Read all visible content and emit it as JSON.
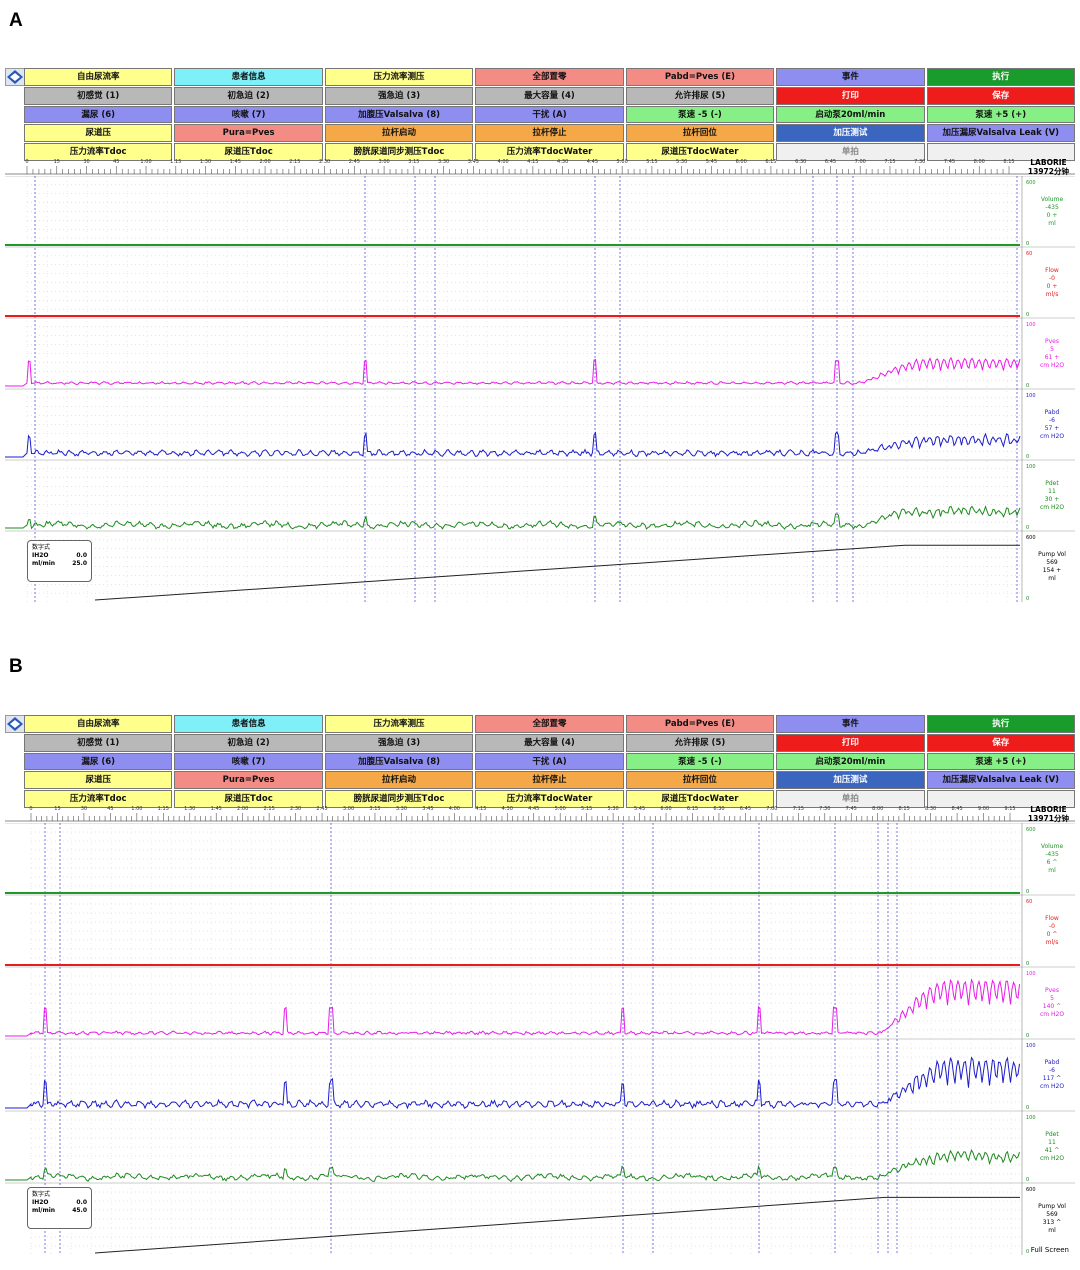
{
  "panels": [
    {
      "letter": "A",
      "buttons": [
        {
          "label": "自由尿流率",
          "color": "yellow"
        },
        {
          "label": "患者信息",
          "color": "cyan"
        },
        {
          "label": "压力流率测压",
          "color": "yellow"
        },
        {
          "label": "全部置零",
          "color": "salmon"
        },
        {
          "label": "Pabd=Pves (E)",
          "color": "salmon"
        },
        {
          "label": "事件",
          "color": "purple"
        },
        {
          "label": "执行",
          "color": "green"
        },
        {
          "label": "初感觉 (1)",
          "color": "gray"
        },
        {
          "label": "初急迫 (2)",
          "color": "gray"
        },
        {
          "label": "强急迫 (3)",
          "color": "gray"
        },
        {
          "label": "最大容量 (4)",
          "color": "gray"
        },
        {
          "label": "允许排尿 (5)",
          "color": "gray"
        },
        {
          "label": "打印",
          "color": "red"
        },
        {
          "label": "保存",
          "color": "red"
        },
        {
          "label": "漏尿 (6)",
          "color": "purple"
        },
        {
          "label": "咳嗽 (7)",
          "color": "purple"
        },
        {
          "label": "加腹压Valsalva (8)",
          "color": "purple"
        },
        {
          "label": "干扰 (A)",
          "color": "purple"
        },
        {
          "label": "泵速 -5 (-)",
          "color": "lgreen"
        },
        {
          "label": "启动泵20ml/min",
          "color": "lgreen"
        },
        {
          "label": "泵速 +5 (+)",
          "color": "lgreen"
        },
        {
          "label": "尿道压",
          "color": "yellow"
        },
        {
          "label": "Pura=Pves",
          "color": "salmon"
        },
        {
          "label": "拉杆启动",
          "color": "orange"
        },
        {
          "label": "拉杆停止",
          "color": "orange"
        },
        {
          "label": "拉杆回位",
          "color": "orange"
        },
        {
          "label": "加压测试",
          "color": "blue"
        },
        {
          "label": "加压漏尿Valsalva Leak (V)",
          "color": "purple"
        },
        {
          "label": "压力流率Tdoc",
          "color": "yellow"
        },
        {
          "label": "尿道压Tdoc",
          "color": "yellow"
        },
        {
          "label": "膀胱尿道同步测压Tdoc",
          "color": "yellow"
        },
        {
          "label": "压力流率TdocWater",
          "color": "yellow"
        },
        {
          "label": "尿道压TdocWater",
          "color": "yellow"
        },
        {
          "label": "单拍",
          "color": "white"
        }
      ],
      "time_ticks": [
        "0",
        "15",
        "30",
        "45",
        "1:00",
        "1:15",
        "1:30",
        "1:45",
        "2:00",
        "2:15",
        "2:30",
        "2:45",
        "3:00",
        "3:15",
        "3:30",
        "3:45",
        "4:00",
        "4:15",
        "4:30",
        "4:45",
        "5:00",
        "5:15",
        "5:30",
        "5:45",
        "6:00",
        "6:15",
        "6:30",
        "6:45",
        "7:00",
        "7:15",
        "7:30",
        "7:45",
        "8:00",
        "8:15"
      ],
      "laborie": {
        "brand": "LABORIE",
        "session": "13972分钟"
      },
      "channels": [
        {
          "name": "Volume",
          "values": [
            "-435",
            "0 +",
            "ml"
          ],
          "scale_top": "600",
          "scale_bottom": "0",
          "color": "#1e9a28"
        },
        {
          "name": "Flow",
          "values": [
            "-0",
            "0 +",
            "ml/s"
          ],
          "scale_top": "60",
          "scale_bottom": "0",
          "color": "#e81c1c"
        },
        {
          "name": "Pves",
          "values": [
            "5",
            "61 +",
            "cm H2O"
          ],
          "scale_top": "100",
          "scale_bottom": "0",
          "color": "#e81ce8"
        },
        {
          "name": "Pabd",
          "values": [
            "-6",
            "57 +",
            "cm H2O"
          ],
          "scale_top": "100",
          "scale_bottom": "0",
          "color": "#1c1cc8"
        },
        {
          "name": "Pdet",
          "values": [
            "11",
            "30 +",
            "cm H2O"
          ],
          "scale_top": "100",
          "scale_bottom": "0",
          "color": "#1e8a1e"
        },
        {
          "name": "Pump Vol",
          "values": [
            "569",
            "154 +",
            "ml"
          ],
          "scale_top": "600",
          "scale_bottom": "0",
          "color": "#000000"
        }
      ],
      "numeric": {
        "title": "数字式",
        "rows": [
          {
            "label": "IH2O",
            "value": "0.0"
          },
          {
            "label": "ml/min",
            "value": "25.0"
          }
        ]
      }
    },
    {
      "letter": "B",
      "buttons": [
        {
          "label": "自由尿流率",
          "color": "yellow"
        },
        {
          "label": "患者信息",
          "color": "cyan"
        },
        {
          "label": "压力流率测压",
          "color": "yellow"
        },
        {
          "label": "全部置零",
          "color": "salmon"
        },
        {
          "label": "Pabd=Pves (E)",
          "color": "salmon"
        },
        {
          "label": "事件",
          "color": "purple"
        },
        {
          "label": "执行",
          "color": "green"
        },
        {
          "label": "初感觉 (1)",
          "color": "gray"
        },
        {
          "label": "初急迫 (2)",
          "color": "gray"
        },
        {
          "label": "强急迫 (3)",
          "color": "gray"
        },
        {
          "label": "最大容量 (4)",
          "color": "gray"
        },
        {
          "label": "允许排尿 (5)",
          "color": "gray"
        },
        {
          "label": "打印",
          "color": "red"
        },
        {
          "label": "保存",
          "color": "red"
        },
        {
          "label": "漏尿 (6)",
          "color": "purple"
        },
        {
          "label": "咳嗽 (7)",
          "color": "purple"
        },
        {
          "label": "加腹压Valsalva (8)",
          "color": "purple"
        },
        {
          "label": "干扰 (A)",
          "color": "purple"
        },
        {
          "label": "泵速 -5 (-)",
          "color": "lgreen"
        },
        {
          "label": "启动泵20ml/min",
          "color": "lgreen"
        },
        {
          "label": "泵速 +5 (+)",
          "color": "lgreen"
        },
        {
          "label": "尿道压",
          "color": "yellow"
        },
        {
          "label": "Pura=Pves",
          "color": "salmon"
        },
        {
          "label": "拉杆启动",
          "color": "orange"
        },
        {
          "label": "拉杆停止",
          "color": "orange"
        },
        {
          "label": "拉杆回位",
          "color": "orange"
        },
        {
          "label": "加压测试",
          "color": "blue"
        },
        {
          "label": "加压漏尿Valsalva Leak (V)",
          "color": "purple"
        },
        {
          "label": "压力流率Tdoc",
          "color": "yellow"
        },
        {
          "label": "尿道压Tdoc",
          "color": "yellow"
        },
        {
          "label": "膀胱尿道同步测压Tdoc",
          "color": "yellow"
        },
        {
          "label": "压力流率TdocWater",
          "color": "yellow"
        },
        {
          "label": "尿道压TdocWater",
          "color": "yellow"
        },
        {
          "label": "单拍",
          "color": "white"
        }
      ],
      "time_ticks": [
        "0",
        "15",
        "30",
        "45",
        "1:00",
        "1:15",
        "1:30",
        "1:45",
        "2:00",
        "2:15",
        "2:30",
        "2:45",
        "3:00",
        "3:15",
        "3:30",
        "3:45",
        "4:00",
        "4:15",
        "4:30",
        "4:45",
        "5:00",
        "5:15",
        "5:30",
        "5:45",
        "6:00",
        "6:15",
        "6:30",
        "6:45",
        "7:00",
        "7:15",
        "7:30",
        "7:45",
        "8:00",
        "8:15",
        "8:30",
        "8:45",
        "9:00",
        "9:15"
      ],
      "laborie": {
        "brand": "LABORIE",
        "session": "13971分钟"
      },
      "channels": [
        {
          "name": "Volume",
          "values": [
            "-435",
            "6 ^",
            "ml"
          ],
          "scale_top": "600",
          "scale_bottom": "0",
          "color": "#1e9a28"
        },
        {
          "name": "Flow",
          "values": [
            "-0",
            "0 ^",
            "ml/s"
          ],
          "scale_top": "60",
          "scale_bottom": "0",
          "color": "#e81c1c"
        },
        {
          "name": "Pves",
          "values": [
            "5",
            "140 ^",
            "cm H2O"
          ],
          "scale_top": "100",
          "scale_bottom": "0",
          "color": "#e81ce8"
        },
        {
          "name": "Pabd",
          "values": [
            "-6",
            "117 ^",
            "cm H2O"
          ],
          "scale_top": "100",
          "scale_bottom": "0",
          "color": "#1c1cc8"
        },
        {
          "name": "Pdet",
          "values": [
            "11",
            "41 ^",
            "cm H2O"
          ],
          "scale_top": "100",
          "scale_bottom": "0",
          "color": "#1e8a1e"
        },
        {
          "name": "Pump Vol",
          "values": [
            "569",
            "313 ^",
            "ml"
          ],
          "scale_top": "600",
          "scale_bottom": "0",
          "color": "#000000"
        }
      ],
      "numeric": {
        "title": "数字式",
        "rows": [
          {
            "label": "IH2O",
            "value": "0.0"
          },
          {
            "label": "ml/min",
            "value": "45.0"
          }
        ]
      },
      "full_screen_label": "Full Screen"
    }
  ]
}
